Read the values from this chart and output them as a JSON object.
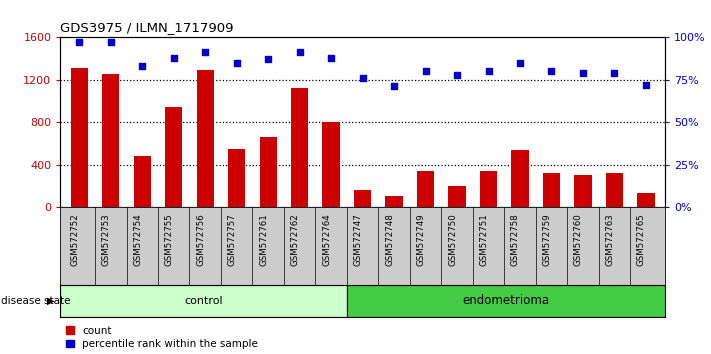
{
  "title": "GDS3975 / ILMN_1717909",
  "samples": [
    "GSM572752",
    "GSM572753",
    "GSM572754",
    "GSM572755",
    "GSM572756",
    "GSM572757",
    "GSM572761",
    "GSM572762",
    "GSM572764",
    "GSM572747",
    "GSM572748",
    "GSM572749",
    "GSM572750",
    "GSM572751",
    "GSM572758",
    "GSM572759",
    "GSM572760",
    "GSM572763",
    "GSM572765"
  ],
  "counts": [
    1310,
    1255,
    480,
    940,
    1290,
    550,
    660,
    1120,
    800,
    160,
    100,
    340,
    200,
    340,
    540,
    320,
    305,
    320,
    130
  ],
  "percentile_ranks": [
    97,
    97,
    83,
    88,
    91,
    85,
    87,
    91,
    88,
    76,
    71,
    80,
    78,
    80,
    85,
    80,
    79,
    79,
    72
  ],
  "group_labels": [
    "control",
    "endometrioma"
  ],
  "group_sizes": [
    9,
    10
  ],
  "bar_color": "#cc0000",
  "dot_color": "#0000cc",
  "control_bg": "#ccffcc",
  "endometrioma_bg": "#44cc44",
  "tick_bg": "#cccccc",
  "ylim_left": [
    0,
    1600
  ],
  "ylim_right": [
    0,
    100
  ],
  "yticks_left": [
    0,
    400,
    800,
    1200,
    1600
  ],
  "yticks_right": [
    0,
    25,
    50,
    75,
    100
  ],
  "ytick_labels_left": [
    "0",
    "400",
    "800",
    "1200",
    "1600"
  ],
  "ytick_labels_right": [
    "0%",
    "25%",
    "50%",
    "75%",
    "100%"
  ],
  "ylabel_left_color": "#cc0000",
  "ylabel_right_color": "#0000cc",
  "legend_count_label": "count",
  "legend_pct_label": "percentile rank within the sample",
  "disease_state_label": "disease state",
  "bar_width": 0.55
}
